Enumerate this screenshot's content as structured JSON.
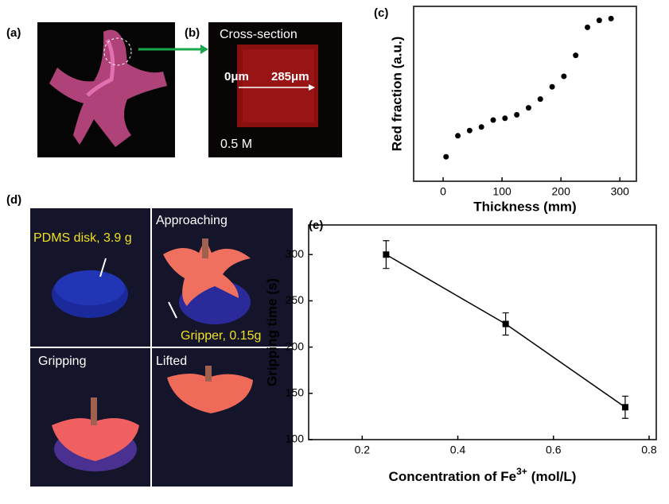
{
  "panels": {
    "a": "(a)",
    "b": "(b)",
    "c": "(c)",
    "d": "(d)",
    "e": "(e)"
  },
  "photo_b": {
    "title": "Cross-section",
    "start": "0μm",
    "end": "285μm",
    "concentration": "0.5 M"
  },
  "photo_d": {
    "object": "PDMS disk, 3.9 g",
    "gripper": "Gripper, 0.15g",
    "stages": [
      "Approaching",
      "Gripping",
      "Lifted"
    ]
  },
  "chart_data": [
    {
      "type": "scatter",
      "xlabel": "Thickness (mm)",
      "ylabel": "Red fraction (a.u.)",
      "x": [
        5,
        25,
        45,
        65,
        85,
        105,
        125,
        145,
        165,
        185,
        205,
        225,
        245,
        265,
        285
      ],
      "values": [
        0.14,
        0.26,
        0.29,
        0.31,
        0.35,
        0.36,
        0.38,
        0.42,
        0.47,
        0.54,
        0.6,
        0.72,
        0.88,
        0.92,
        0.93
      ],
      "color": "#000000",
      "xlim": [
        -50,
        328
      ],
      "ylim": [
        0,
        1
      ],
      "xticks": [
        0,
        100,
        200,
        300
      ]
    },
    {
      "type": "line",
      "xlabel": [
        "Concentration of Fe",
        "3+",
        "(mol/L)"
      ],
      "ylabel": "Gripping time (s)",
      "x": [
        0.25,
        0.5,
        0.75
      ],
      "values": [
        300,
        225,
        135
      ],
      "errors": [
        15,
        12,
        12
      ],
      "color": "#000000",
      "xlim": [
        0.088,
        0.815
      ],
      "ylim": [
        100,
        332
      ],
      "xticks": [
        0.2,
        0.4,
        0.6,
        0.8
      ],
      "yticks": [
        100,
        150,
        200,
        250,
        300
      ]
    }
  ]
}
